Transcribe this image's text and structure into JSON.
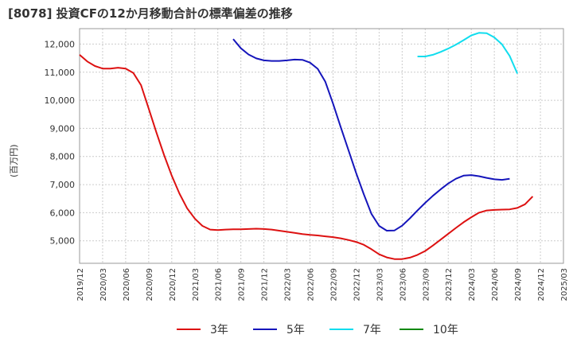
{
  "chart_data": {
    "type": "line",
    "title": "[8078]  投資CFの12か月移動合計の標準偏差の推移",
    "ylabel": "(百万円)",
    "xlabel": "",
    "ylim": [
      4200,
      12550
    ],
    "yticks": [
      5000,
      6000,
      7000,
      8000,
      9000,
      10000,
      11000,
      12000
    ],
    "ytick_labels": [
      "5,000",
      "6,000",
      "7,000",
      "8,000",
      "9,000",
      "10,000",
      "11,000",
      "12,000"
    ],
    "x_start": "2019-12",
    "x_end": "2025-03",
    "xtick_labels": [
      "2019/12",
      "2020/03",
      "2020/06",
      "2020/09",
      "2020/12",
      "2021/03",
      "2021/06",
      "2021/09",
      "2021/12",
      "2022/03",
      "2022/06",
      "2022/09",
      "2022/12",
      "2023/03",
      "2023/06",
      "2023/09",
      "2023/12",
      "2024/03",
      "2024/06",
      "2024/09",
      "2024/12",
      "2025/03"
    ],
    "grid": true,
    "legend_position": "bottom",
    "series": [
      {
        "name": "3年",
        "color": "#dd1111",
        "start": "2019-12",
        "values": [
          11620,
          11380,
          11220,
          11130,
          11130,
          11160,
          11130,
          10970,
          10540,
          9700,
          8860,
          8050,
          7320,
          6680,
          6160,
          5790,
          5530,
          5400,
          5380,
          5400,
          5410,
          5410,
          5420,
          5430,
          5420,
          5400,
          5360,
          5320,
          5280,
          5240,
          5210,
          5190,
          5160,
          5130,
          5090,
          5030,
          4960,
          4860,
          4700,
          4520,
          4410,
          4350,
          4350,
          4400,
          4500,
          4640,
          4830,
          5040,
          5250,
          5460,
          5660,
          5840,
          6000,
          6080,
          6100,
          6110,
          6120,
          6170,
          6300,
          6580
        ]
      },
      {
        "name": "5年",
        "color": "#1515bb",
        "start": "2021-08",
        "values": [
          12180,
          11850,
          11630,
          11490,
          11420,
          11400,
          11400,
          11420,
          11450,
          11440,
          11340,
          11120,
          10660,
          9880,
          9050,
          8230,
          7420,
          6660,
          5960,
          5530,
          5360,
          5370,
          5540,
          5800,
          6080,
          6350,
          6600,
          6830,
          7040,
          7210,
          7320,
          7340,
          7300,
          7240,
          7190,
          7170,
          7210
        ]
      },
      {
        "name": "7年",
        "color": "#11ddee",
        "start": "2023-08",
        "values": [
          11560,
          11560,
          11620,
          11720,
          11840,
          11980,
          12140,
          12310,
          12400,
          12390,
          12240,
          11990,
          11580,
          10950
        ]
      },
      {
        "name": "10年",
        "color": "#118811",
        "start": "2024-09",
        "values": []
      }
    ]
  }
}
